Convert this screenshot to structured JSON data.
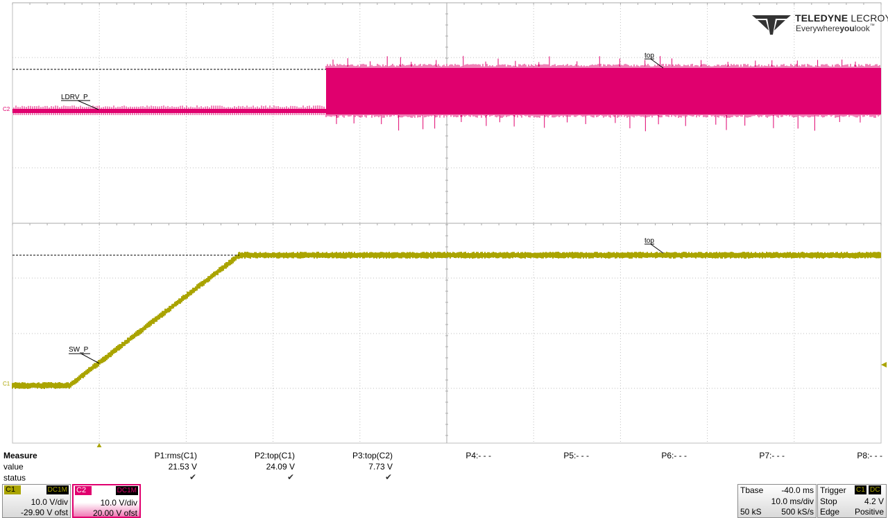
{
  "logo": {
    "brand_bold": "TELEDYNE",
    "brand_thin": " LECROY",
    "tagline_pre": "Everywhere",
    "tagline_bold": "you",
    "tagline_post": "look",
    "tm": "™"
  },
  "traces": {
    "c2": {
      "label": "LDRV_P",
      "marker": "C2",
      "color": "#e0006e",
      "top_label": "top"
    },
    "c1": {
      "label": "SW_P",
      "marker": "C1",
      "color": "#aaa400",
      "top_label": "top"
    }
  },
  "measure": {
    "title": "Measure",
    "row_value": "value",
    "row_status": "status",
    "params": [
      {
        "name": "P1:rms(C1)",
        "value": "21.53 V",
        "ok": true
      },
      {
        "name": "P2:top(C1)",
        "value": "24.09 V",
        "ok": true
      },
      {
        "name": "P3:top(C2)",
        "value": "7.73 V",
        "ok": true
      },
      {
        "name": "P4:- - -",
        "value": "",
        "ok": false
      },
      {
        "name": "P5:- - -",
        "value": "",
        "ok": false
      },
      {
        "name": "P6:- - -",
        "value": "",
        "ok": false
      },
      {
        "name": "P7:- - -",
        "value": "",
        "ok": false
      },
      {
        "name": "P8:- - -",
        "value": "",
        "ok": false
      }
    ],
    "check_glyph": "✔"
  },
  "channels": {
    "c1": {
      "name": "C1",
      "coupling": "DC1M",
      "vdiv": "10.0 V/div",
      "offset": "-29.90 V ofst",
      "color": "#aaa400"
    },
    "c2": {
      "name": "C2",
      "coupling": "DC1M",
      "vdiv": "10.0 V/div",
      "offset": "20.00 V ofst",
      "color": "#e0006e"
    }
  },
  "timebase": {
    "label": "Tbase",
    "delay": "-40.0 ms",
    "tdiv": "10.0 ms/div",
    "samples": "50 kS",
    "rate": "500 kS/s"
  },
  "trigger": {
    "label": "Trigger",
    "src": "C1",
    "coupling": "DC",
    "mode": "Stop",
    "level": "4.2 V",
    "type": "Edge",
    "slope": "Positive"
  }
}
